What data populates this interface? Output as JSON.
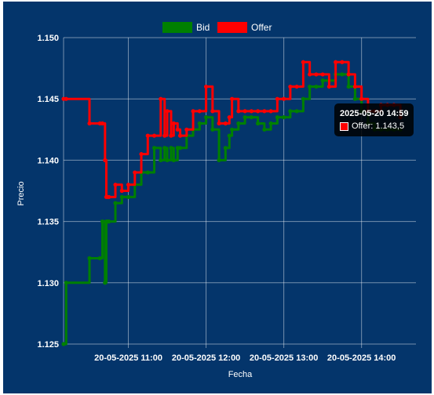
{
  "chart_data": {
    "type": "line",
    "xlabel": "Fecha",
    "ylabel": "Precio",
    "ylim": [
      1.125,
      1.15
    ],
    "yticks": [
      "1.125",
      "1.130",
      "1.135",
      "1.140",
      "1.145",
      "1.150"
    ],
    "xtick_labels": [
      "20-05-2025 11:00",
      "20-05-2025 12:00",
      "20-05-2025 13:00",
      "20-05-2025 14:00"
    ],
    "legend": "top-center",
    "grid": true,
    "series": [
      {
        "name": "Bid",
        "color": "#008000",
        "x": [
          "10:10",
          "10:12",
          "10:30",
          "10:38",
          "10:40",
          "10:42",
          "10:43",
          "10:44",
          "10:45",
          "10:50",
          "10:55",
          "11:00",
          "11:05",
          "11:10",
          "11:15",
          "11:20",
          "11:25",
          "11:28",
          "11:30",
          "11:33",
          "11:35",
          "11:38",
          "11:40",
          "11:45",
          "11:50",
          "11:55",
          "12:00",
          "12:05",
          "12:10",
          "12:15",
          "12:18",
          "12:20",
          "12:25",
          "12:30",
          "12:35",
          "12:40",
          "12:45",
          "12:50",
          "12:55",
          "13:00",
          "13:05",
          "13:10",
          "13:15",
          "13:20",
          "13:25",
          "13:30",
          "13:35",
          "13:40",
          "13:45",
          "13:50",
          "13:55",
          "14:00",
          "14:05",
          "14:10",
          "14:15",
          "14:20",
          "14:25",
          "14:30"
        ],
        "values": [
          1.125,
          1.13,
          1.132,
          1.132,
          1.135,
          1.13,
          1.135,
          1.135,
          1.135,
          1.1365,
          1.137,
          1.137,
          1.138,
          1.139,
          1.139,
          1.141,
          1.14,
          1.141,
          1.14,
          1.141,
          1.14,
          1.141,
          1.141,
          1.142,
          1.1425,
          1.143,
          1.1435,
          1.1425,
          1.14,
          1.141,
          1.142,
          1.1425,
          1.143,
          1.1435,
          1.1435,
          1.143,
          1.1425,
          1.143,
          1.1435,
          1.1435,
          1.144,
          1.144,
          1.145,
          1.146,
          1.146,
          1.1465,
          1.1465,
          1.147,
          1.147,
          1.146,
          1.145,
          1.144,
          1.143,
          1.1425,
          1.1425,
          1.1425,
          1.1425,
          1.1425
        ]
      },
      {
        "name": "Offer",
        "color": "#ff0000",
        "x": [
          "10:10",
          "10:12",
          "10:30",
          "10:38",
          "10:40",
          "10:42",
          "10:43",
          "10:44",
          "10:45",
          "10:50",
          "10:55",
          "11:00",
          "11:05",
          "11:10",
          "11:15",
          "11:20",
          "11:25",
          "11:28",
          "11:30",
          "11:33",
          "11:35",
          "11:38",
          "11:40",
          "11:45",
          "11:50",
          "11:55",
          "12:00",
          "12:05",
          "12:10",
          "12:15",
          "12:18",
          "12:20",
          "12:25",
          "12:30",
          "12:35",
          "12:40",
          "12:45",
          "12:50",
          "12:55",
          "13:00",
          "13:05",
          "13:10",
          "13:15",
          "13:20",
          "13:25",
          "13:30",
          "13:35",
          "13:40",
          "13:45",
          "13:50",
          "13:55",
          "14:00",
          "14:05",
          "14:10",
          "14:15",
          "14:20",
          "14:25",
          "14:30"
        ],
        "values": [
          1.145,
          1.145,
          1.143,
          1.143,
          1.143,
          1.14,
          1.137,
          1.137,
          1.137,
          1.138,
          1.1375,
          1.138,
          1.139,
          1.1405,
          1.142,
          1.142,
          1.145,
          1.142,
          1.144,
          1.142,
          1.143,
          1.1425,
          1.142,
          1.1425,
          1.144,
          1.144,
          1.146,
          1.144,
          1.143,
          1.143,
          1.1435,
          1.145,
          1.144,
          1.144,
          1.144,
          1.144,
          1.144,
          1.144,
          1.145,
          1.145,
          1.146,
          1.146,
          1.148,
          1.147,
          1.147,
          1.147,
          1.146,
          1.148,
          1.148,
          1.147,
          1.146,
          1.145,
          1.144,
          1.144,
          1.1445,
          1.1445,
          1.1445,
          1.1435
        ]
      }
    ]
  },
  "legend": {
    "bid_label": "Bid",
    "offer_label": "Offer"
  },
  "tooltip": {
    "title": "2025-05-20 14:59",
    "value_text": "Offer: 1.143,5"
  }
}
